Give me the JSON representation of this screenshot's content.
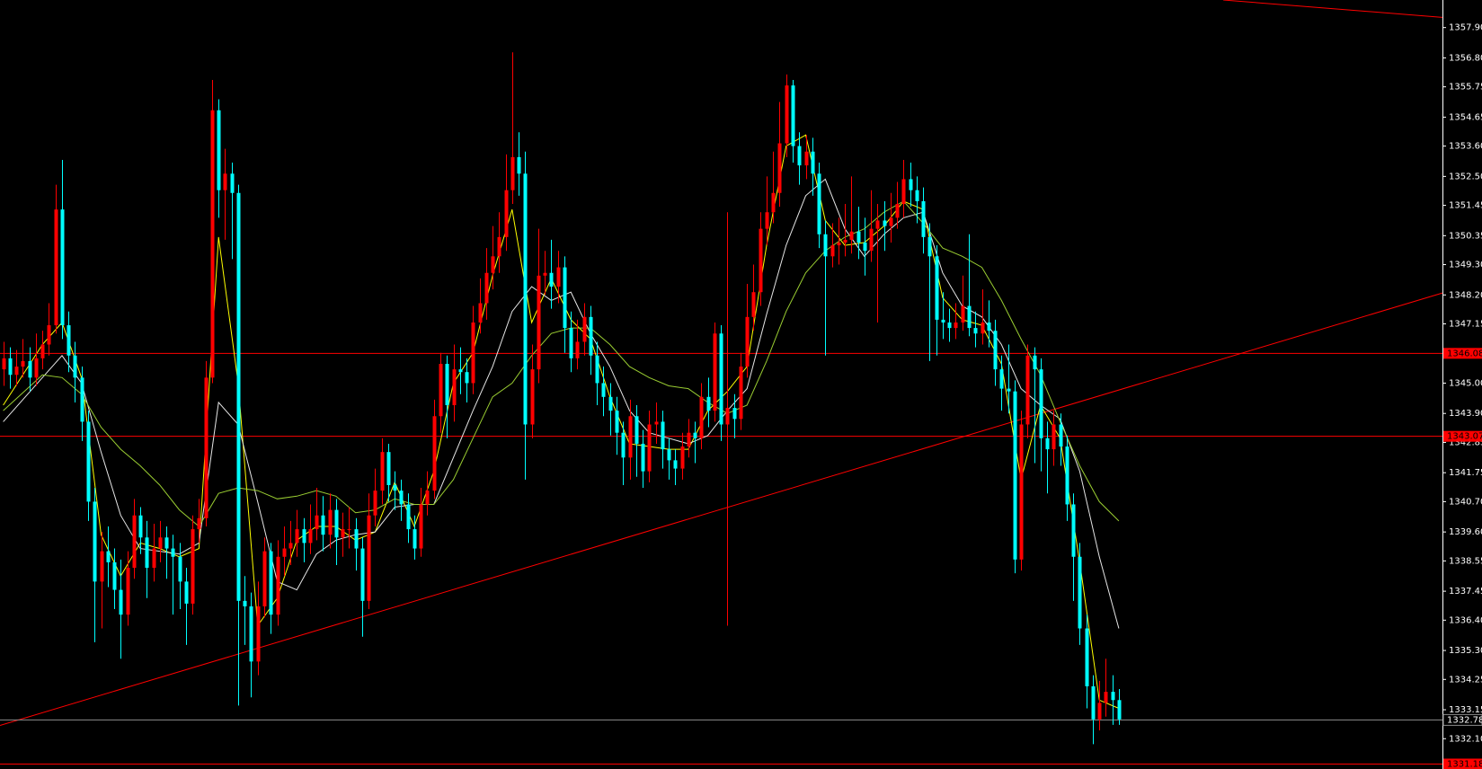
{
  "chart_data": {
    "type": "candlestick",
    "up_color": "#ff0000",
    "down_color": "#00ffff",
    "xlim": [
      -0.5,
      220.6
    ],
    "ylim": [
      1331.0,
      1358.9
    ],
    "yticks": [
      {
        "value": 1357.9,
        "label": "1357.90"
      },
      {
        "value": 1356.8,
        "label": "1356.80"
      },
      1355.75,
      1354.65,
      {
        "value": 1353.6,
        "label": "1353.60"
      },
      {
        "value": 1352.5,
        "label": "1352.50"
      },
      1351.45,
      1350.35,
      {
        "value": 1349.3,
        "label": "1349.30"
      },
      {
        "value": 1348.2,
        "label": "1348.20"
      },
      1347.15,
      {
        "value": 1345,
        "label": "1345.00"
      },
      {
        "value": 1343.9,
        "label": "1343.90"
      },
      1342.85,
      1341.75,
      {
        "value": 1340.7,
        "label": "1340.70"
      },
      {
        "value": 1339.6,
        "label": "1339.60"
      },
      1338.55,
      1337.45,
      {
        "value": 1336.4,
        "label": "1336.40"
      },
      {
        "value": 1335.3,
        "label": "1335.30"
      },
      1334.25,
      1333.15,
      {
        "value": 1332.1,
        "label": "1332.10"
      }
    ],
    "open": [
      1345.5,
      1345.9,
      1345.3,
      1345.6,
      1345.8,
      1345.2,
      1345.9,
      1346.4,
      1347.1,
      1351.3,
      1347.1,
      1346.0,
      1345.2,
      1343.6,
      1340.7,
      1337.8,
      1338.9,
      1338.5,
      1337.5,
      1336.6,
      1338.3,
      1340.2,
      1339.4,
      1338.3,
      1339.0,
      1339.4,
      1339.0,
      1338.7,
      1337.8,
      1337.0,
      1339.7,
      1340.1,
      1345.2,
      1354.9,
      1352.0,
      1352.6,
      1351.9,
      1337.1,
      1336.9,
      1334.9,
      1336.9,
      1338.9,
      1336.6,
      1338.7,
      1339.0,
      1339.2,
      1339.7,
      1339.2,
      1339.7,
      1340.2,
      1339.5,
      1340.4,
      1339.4,
      1339.7,
      1339.7,
      1339.0,
      1337.1,
      1340.2,
      1341.1,
      1342.5,
      1341.3,
      1341.1,
      1340.6,
      1339.7,
      1339.0,
      1340.6,
      1341.1,
      1343.8,
      1345.7,
      1344.2,
      1345.5,
      1345.4,
      1345.0,
      1347.2,
      1347.9,
      1349.0,
      1349.6,
      1350.3,
      1352.0,
      1353.2,
      1352.6,
      1343.5,
      1345.5,
      1348.9,
      1349.0,
      1348.5,
      1349.2,
      1347.0,
      1345.9,
      1346.5,
      1347.4,
      1346.0,
      1345.0,
      1344.5,
      1344.0,
      1343.2,
      1342.3,
      1343.8,
      1342.8,
      1341.8,
      1343.5,
      1343.6,
      1342.6,
      1342.2,
      1341.9,
      1342.7,
      1343.2,
      1343.0,
      1344.5,
      1344.0,
      1346.8,
      1343.5,
      1344.1,
      1343.7,
      1345.6,
      1347.4,
      1348.3,
      1350.6,
      1351.2,
      1351.9,
      1353.7,
      1355.8,
      1353.6,
      1352.9,
      1353.4,
      1352.6,
      1350.4,
      1349.6,
      1350.0,
      1350.1,
      1350.2,
      1350.5,
      1350.1,
      1349.8,
      1350.6,
      1350.9,
      1350.7,
      1351.0,
      1351.5,
      1352.4,
      1352.0,
      1351.6,
      1350.3,
      1349.6,
      1347.3,
      1347.2,
      1347.0,
      1347.2,
      1347.8,
      1347.0,
      1346.8,
      1347.2,
      1346.9,
      1345.5,
      1344.8,
      1344.7,
      1338.6,
      1343.5,
      1346.0,
      1345.5,
      1343.0,
      1342.6,
      1343.5,
      1342.7,
      1340.6,
      1338.7,
      1336.1,
      1334.0,
      1332.8,
      1333.4,
      1333.8,
      1333.5
    ],
    "high": [
      1346.5,
      1346.3,
      1346.2,
      1346.6,
      1346.3,
      1346.8,
      1346.9,
      1347.9,
      1352.2,
      1353.1,
      1347.6,
      1346.5,
      1345.6,
      1344.0,
      1341.2,
      1339.6,
      1339.8,
      1339.0,
      1338.6,
      1338.9,
      1340.8,
      1340.5,
      1340.0,
      1339.9,
      1340.0,
      1339.8,
      1339.5,
      1339.2,
      1338.3,
      1340.2,
      1340.8,
      1345.8,
      1356.0,
      1355.3,
      1353.5,
      1353.0,
      1352.2,
      1338.0,
      1337.4,
      1337.8,
      1339.4,
      1339.2,
      1339.3,
      1339.8,
      1340.0,
      1340.4,
      1340.1,
      1340.6,
      1341.2,
      1340.9,
      1341.0,
      1340.8,
      1340.3,
      1340.5,
      1340.1,
      1339.4,
      1341.0,
      1341.9,
      1343.0,
      1342.8,
      1341.8,
      1341.5,
      1341.0,
      1340.2,
      1341.2,
      1341.8,
      1344.4,
      1346.1,
      1346.0,
      1346.4,
      1346.3,
      1345.9,
      1347.8,
      1348.8,
      1349.9,
      1350.7,
      1351.2,
      1353.3,
      1357.0,
      1354.1,
      1353.4,
      1346.4,
      1350.6,
      1349.8,
      1350.2,
      1349.8,
      1349.6,
      1347.6,
      1347.3,
      1347.9,
      1347.8,
      1346.5,
      1345.6,
      1345.0,
      1344.5,
      1343.6,
      1344.4,
      1344.2,
      1343.3,
      1344.0,
      1344.3,
      1344.0,
      1343.0,
      1342.6,
      1343.2,
      1343.7,
      1343.6,
      1345.0,
      1345.2,
      1347.2,
      1347.1,
      1351.2,
      1344.6,
      1346.1,
      1348.6,
      1349.3,
      1351.2,
      1352.5,
      1353.4,
      1355.2,
      1356.2,
      1356.0,
      1354.1,
      1354.0,
      1353.9,
      1353.0,
      1350.9,
      1350.8,
      1351.0,
      1351.5,
      1352.5,
      1351.4,
      1351.0,
      1352.0,
      1351.5,
      1351.6,
      1351.9,
      1352.3,
      1353.1,
      1353.0,
      1352.5,
      1352.1,
      1350.8,
      1350.0,
      1348.3,
      1347.7,
      1347.9,
      1348.9,
      1350.4,
      1347.6,
      1348.4,
      1348.0,
      1347.3,
      1346.0,
      1346.4,
      1345.1,
      1344.0,
      1346.4,
      1346.3,
      1345.9,
      1343.6,
      1344.0,
      1343.9,
      1343.1,
      1341.0,
      1339.2,
      1336.6,
      1334.4,
      1334.2,
      1335.0,
      1334.4,
      1333.9
    ],
    "low": [
      1344.9,
      1344.8,
      1344.9,
      1345.2,
      1344.7,
      1344.9,
      1345.5,
      1346.0,
      1346.8,
      1346.6,
      1345.4,
      1344.3,
      1342.9,
      1340.0,
      1335.6,
      1336.1,
      1337.6,
      1336.8,
      1335.0,
      1336.2,
      1337.9,
      1338.8,
      1337.2,
      1337.8,
      1338.5,
      1337.9,
      1336.6,
      1336.8,
      1335.5,
      1336.6,
      1339.2,
      1339.8,
      1345.0,
      1351.0,
      1350.2,
      1349.5,
      1333.3,
      1335.5,
      1333.6,
      1334.4,
      1336.5,
      1335.9,
      1336.2,
      1338.0,
      1338.4,
      1338.7,
      1338.5,
      1338.8,
      1339.3,
      1338.9,
      1339.0,
      1338.4,
      1338.7,
      1339.0,
      1338.2,
      1335.8,
      1336.8,
      1339.8,
      1340.6,
      1340.7,
      1340.4,
      1340.0,
      1339.2,
      1338.6,
      1338.7,
      1340.2,
      1340.8,
      1343.2,
      1343.0,
      1343.6,
      1344.6,
      1344.3,
      1344.6,
      1346.8,
      1347.3,
      1348.4,
      1349.0,
      1349.8,
      1351.5,
      1351.8,
      1341.5,
      1343.0,
      1345.0,
      1348.2,
      1347.7,
      1347.9,
      1346.1,
      1345.4,
      1345.5,
      1346.0,
      1345.3,
      1344.2,
      1343.8,
      1343.1,
      1342.4,
      1341.3,
      1341.5,
      1341.6,
      1341.2,
      1341.4,
      1342.8,
      1341.9,
      1341.5,
      1341.3,
      1341.5,
      1342.3,
      1342.1,
      1342.6,
      1343.4,
      1343.6,
      1342.9,
      1336.2,
      1343.0,
      1343.3,
      1345.2,
      1346.9,
      1347.8,
      1350.0,
      1350.8,
      1351.4,
      1353.2,
      1353.0,
      1352.2,
      1352.4,
      1351.8,
      1349.9,
      1346.0,
      1349.2,
      1349.3,
      1349.6,
      1349.7,
      1349.5,
      1348.9,
      1349.4,
      1347.2,
      1349.8,
      1350.1,
      1350.6,
      1351.0,
      1351.4,
      1350.8,
      1349.7,
      1345.8,
      1346.0,
      1346.6,
      1346.5,
      1346.6,
      1346.9,
      1346.7,
      1346.3,
      1346.4,
      1346.3,
      1344.9,
      1344.0,
      1343.9,
      1338.1,
      1338.2,
      1343.0,
      1342.1,
      1341.8,
      1341.0,
      1342.0,
      1342.0,
      1340.0,
      1337.1,
      1335.5,
      1333.2,
      1331.9,
      1332.4,
      1332.9,
      1332.6,
      1332.6
    ],
    "close": [
      1345.9,
      1345.3,
      1345.6,
      1345.8,
      1345.2,
      1345.9,
      1346.4,
      1347.1,
      1351.3,
      1347.1,
      1346.0,
      1345.2,
      1343.6,
      1340.7,
      1337.8,
      1338.9,
      1338.5,
      1337.5,
      1336.6,
      1338.3,
      1340.2,
      1339.4,
      1338.3,
      1339.0,
      1339.4,
      1339.0,
      1338.7,
      1337.8,
      1337.0,
      1339.7,
      1340.1,
      1345.2,
      1354.9,
      1352.0,
      1352.6,
      1351.9,
      1337.1,
      1336.9,
      1334.9,
      1336.9,
      1338.9,
      1336.6,
      1338.7,
      1339.0,
      1339.2,
      1339.7,
      1339.2,
      1339.7,
      1340.2,
      1339.5,
      1340.4,
      1339.4,
      1339.7,
      1339.7,
      1339.0,
      1337.1,
      1340.2,
      1341.1,
      1342.5,
      1341.3,
      1341.1,
      1340.6,
      1339.7,
      1339.0,
      1340.6,
      1341.1,
      1343.8,
      1345.7,
      1344.2,
      1345.5,
      1345.4,
      1345.0,
      1347.2,
      1347.9,
      1349.0,
      1349.6,
      1350.3,
      1352.0,
      1353.2,
      1352.6,
      1343.5,
      1345.5,
      1348.9,
      1349.0,
      1348.5,
      1349.2,
      1347.0,
      1345.9,
      1346.5,
      1347.4,
      1346.0,
      1345.0,
      1344.5,
      1344.0,
      1343.2,
      1342.3,
      1343.8,
      1342.8,
      1341.8,
      1343.5,
      1343.6,
      1342.6,
      1342.2,
      1341.9,
      1342.7,
      1343.2,
      1343.0,
      1344.5,
      1344.0,
      1346.8,
      1343.5,
      1344.1,
      1343.7,
      1345.6,
      1347.4,
      1348.3,
      1350.6,
      1351.2,
      1351.9,
      1353.7,
      1355.8,
      1353.6,
      1352.9,
      1353.4,
      1352.6,
      1350.4,
      1349.6,
      1350.0,
      1350.1,
      1350.2,
      1350.5,
      1350.1,
      1349.8,
      1350.6,
      1350.9,
      1350.7,
      1351.0,
      1351.5,
      1352.4,
      1352.0,
      1351.6,
      1350.3,
      1349.6,
      1347.3,
      1347.2,
      1347.0,
      1347.2,
      1347.8,
      1347.0,
      1346.8,
      1347.2,
      1346.9,
      1345.5,
      1344.8,
      1344.7,
      1338.6,
      1343.5,
      1346.0,
      1345.5,
      1343.0,
      1342.6,
      1343.5,
      1342.7,
      1340.6,
      1338.7,
      1336.1,
      1334.0,
      1332.8,
      1333.4,
      1333.8,
      1333.5,
      1332.8
    ],
    "series": [
      {
        "color": "#ffff00",
        "x": [
          0,
          6,
          9,
          12,
          15,
          18,
          21,
          24,
          27,
          30,
          33,
          36,
          39,
          42,
          45,
          48,
          51,
          54,
          57,
          60,
          63,
          66,
          69,
          72,
          75,
          78,
          81,
          84,
          87,
          90,
          93,
          96,
          99,
          102,
          105,
          108,
          111,
          114,
          117,
          120,
          123,
          126,
          129,
          132,
          135,
          138,
          141,
          144,
          147,
          150,
          153,
          156,
          159,
          162,
          165,
          168,
          171
        ],
        "values": [
          1344.2,
          1346.4,
          1347.2,
          1345.2,
          1339.5,
          1338.0,
          1339.2,
          1339.0,
          1338.7,
          1339.0,
          1350.3,
          1345.0,
          1336.2,
          1337.2,
          1339.3,
          1339.8,
          1339.8,
          1339.3,
          1339.6,
          1341.4,
          1339.8,
          1341.8,
          1345.0,
          1346.1,
          1348.9,
          1351.3,
          1347.2,
          1348.8,
          1347.3,
          1346.6,
          1344.5,
          1342.8,
          1342.7,
          1342.6,
          1342.6,
          1344.0,
          1344.7,
          1345.6,
          1350.0,
          1353.6,
          1354.0,
          1350.9,
          1350.0,
          1350.1,
          1350.7,
          1351.6,
          1351.3,
          1348.1,
          1347.3,
          1347.1,
          1345.7,
          1341.5,
          1344.2,
          1343.0,
          1338.5,
          1333.5,
          1333.2
        ]
      },
      {
        "color": "#e6e6e6",
        "x": [
          0,
          6,
          9,
          12,
          15,
          18,
          21,
          24,
          27,
          30,
          33,
          36,
          39,
          42,
          45,
          48,
          51,
          54,
          57,
          60,
          63,
          66,
          69,
          72,
          75,
          78,
          81,
          84,
          87,
          90,
          93,
          96,
          99,
          102,
          105,
          108,
          111,
          114,
          117,
          120,
          123,
          126,
          129,
          132,
          135,
          138,
          141,
          144,
          147,
          150,
          153,
          156,
          159,
          162,
          165,
          168,
          171
        ],
        "values": [
          1343.6,
          1345.2,
          1346.0,
          1345.0,
          1342.5,
          1340.2,
          1339.0,
          1338.9,
          1338.8,
          1339.2,
          1344.3,
          1343.5,
          1340.7,
          1337.8,
          1337.5,
          1338.8,
          1339.3,
          1339.5,
          1339.6,
          1340.5,
          1340.6,
          1340.6,
          1342.3,
          1344.0,
          1345.6,
          1347.6,
          1348.5,
          1348.0,
          1348.3,
          1346.8,
          1345.6,
          1344.0,
          1343.2,
          1343.0,
          1342.8,
          1343.1,
          1344.0,
          1344.8,
          1347.5,
          1350.0,
          1351.8,
          1352.4,
          1350.6,
          1349.6,
          1350.4,
          1351.0,
          1351.2,
          1349.0,
          1347.8,
          1347.4,
          1346.4,
          1344.8,
          1344.2,
          1343.7,
          1341.8,
          1338.7,
          1336.1
        ]
      },
      {
        "color": "#9acd32",
        "x": [
          0,
          6,
          9,
          12,
          15,
          18,
          21,
          24,
          27,
          30,
          33,
          36,
          39,
          42,
          45,
          48,
          51,
          54,
          57,
          60,
          63,
          66,
          69,
          72,
          75,
          78,
          81,
          84,
          87,
          90,
          93,
          96,
          99,
          102,
          105,
          108,
          111,
          114,
          117,
          120,
          123,
          126,
          129,
          132,
          135,
          138,
          141,
          144,
          147,
          150,
          153,
          156,
          159,
          162,
          165,
          168,
          171
        ],
        "values": [
          1344.0,
          1345.3,
          1345.2,
          1344.6,
          1343.4,
          1342.6,
          1342.0,
          1341.3,
          1340.4,
          1339.8,
          1341.0,
          1341.2,
          1341.1,
          1340.8,
          1340.9,
          1341.1,
          1340.9,
          1340.3,
          1340.4,
          1340.8,
          1340.6,
          1340.6,
          1341.5,
          1343.0,
          1344.5,
          1345.0,
          1346.0,
          1346.8,
          1347.0,
          1347.0,
          1346.4,
          1345.6,
          1345.2,
          1344.9,
          1344.8,
          1344.3,
          1343.9,
          1344.2,
          1345.8,
          1347.6,
          1349.0,
          1349.8,
          1350.3,
          1350.6,
          1351.2,
          1351.6,
          1350.8,
          1349.9,
          1349.6,
          1349.2,
          1348.0,
          1346.6,
          1345.3,
          1343.6,
          1342.0,
          1340.7,
          1340.0
        ]
      }
    ],
    "levels": [
      {
        "value": 1346.08,
        "color": "#ff0000"
      },
      {
        "value": 1343.07,
        "color": "#ff0000"
      },
      {
        "value": 1332.78,
        "color": "#8c8c8c"
      },
      {
        "value": 1331.18,
        "color": "#ff0000"
      }
    ],
    "trendlines": [
      {
        "color": "#ff0000",
        "x": [
          -0.5,
          220.6
        ],
        "y": [
          1332.58,
          1348.27
        ]
      },
      {
        "color": "#ff0000",
        "x": [
          187,
          220.6
        ],
        "y": [
          1358.9,
          1358.27
        ]
      }
    ]
  }
}
